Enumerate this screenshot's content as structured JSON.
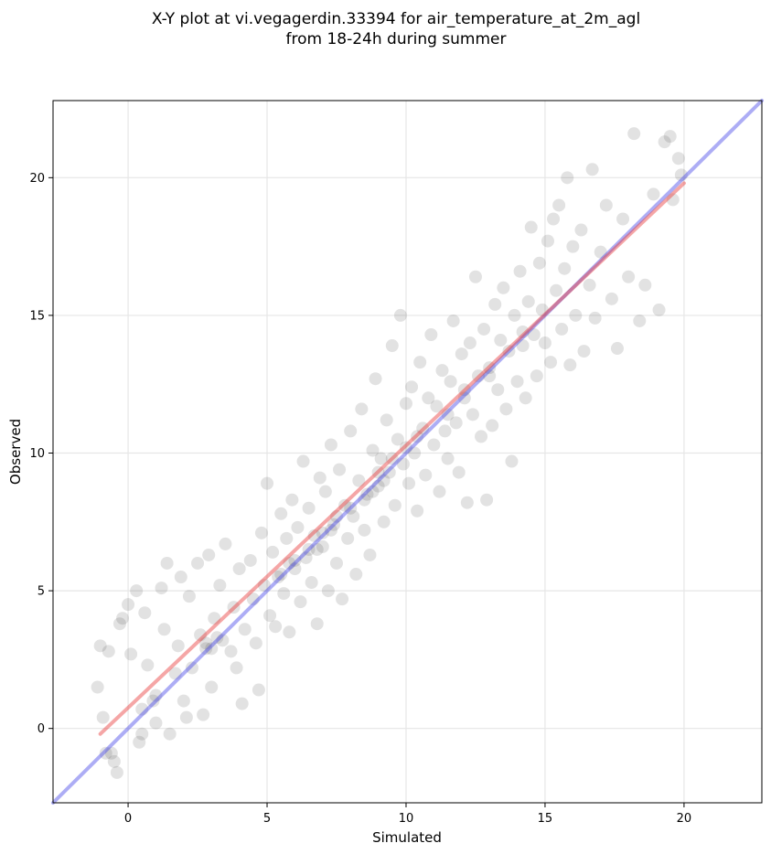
{
  "chart_data": {
    "type": "scatter",
    "title": "X-Y plot at vi.vegagerdin.33394 for air_temperature_at_2m_agl",
    "subtitle": "from 18-24h during summer",
    "xlabel": "Simulated",
    "ylabel": "Observed",
    "xlim": [
      -2.7,
      22.8
    ],
    "ylim": [
      -2.7,
      22.8
    ],
    "x_ticks": [
      0,
      5,
      10,
      15,
      20
    ],
    "y_ticks": [
      0,
      5,
      10,
      15,
      20
    ],
    "grid": true,
    "point_color": "#333333",
    "point_alpha": 0.14,
    "identity_line": {
      "color": "#4a4ae8",
      "alpha": 0.45,
      "x": [
        -2.7,
        22.8
      ],
      "y": [
        -2.7,
        22.8
      ]
    },
    "fit_line": {
      "color": "#e83a3a",
      "alpha": 0.45,
      "x": [
        -1,
        20
      ],
      "y": [
        -0.2,
        19.8
      ]
    },
    "points": [
      [
        -1.1,
        1.5
      ],
      [
        -1.0,
        3.0
      ],
      [
        -0.9,
        0.4
      ],
      [
        -0.7,
        2.8
      ],
      [
        -0.6,
        -0.9
      ],
      [
        -0.5,
        -1.2
      ],
      [
        -0.4,
        -1.6
      ],
      [
        -0.3,
        3.8
      ],
      [
        -0.2,
        4.0
      ],
      [
        0.0,
        4.5
      ],
      [
        0.1,
        2.7
      ],
      [
        0.3,
        5.0
      ],
      [
        0.4,
        -0.5
      ],
      [
        0.5,
        -0.2
      ],
      [
        0.6,
        4.2
      ],
      [
        0.7,
        2.3
      ],
      [
        0.9,
        1.0
      ],
      [
        1.0,
        0.2
      ],
      [
        1.2,
        5.1
      ],
      [
        1.3,
        3.6
      ],
      [
        1.4,
        6.0
      ],
      [
        1.5,
        -0.2
      ],
      [
        1.7,
        2.0
      ],
      [
        1.8,
        3.0
      ],
      [
        1.9,
        5.5
      ],
      [
        2.0,
        1.0
      ],
      [
        2.1,
        0.4
      ],
      [
        2.2,
        4.8
      ],
      [
        2.3,
        2.2
      ],
      [
        2.5,
        6.0
      ],
      [
        2.6,
        3.4
      ],
      [
        2.7,
        0.5
      ],
      [
        2.8,
        2.9
      ],
      [
        2.9,
        6.3
      ],
      [
        3.0,
        1.5
      ],
      [
        3.1,
        4.0
      ],
      [
        3.3,
        5.2
      ],
      [
        3.4,
        3.2
      ],
      [
        3.5,
        6.7
      ],
      [
        3.7,
        2.8
      ],
      [
        3.8,
        4.4
      ],
      [
        3.9,
        2.2
      ],
      [
        4.0,
        5.8
      ],
      [
        4.1,
        0.9
      ],
      [
        4.2,
        3.6
      ],
      [
        4.4,
        6.1
      ],
      [
        4.5,
        4.7
      ],
      [
        4.6,
        3.1
      ],
      [
        4.7,
        1.4
      ],
      [
        4.8,
        7.1
      ],
      [
        4.9,
        5.2
      ],
      [
        5.0,
        8.9
      ],
      [
        5.1,
        4.1
      ],
      [
        5.2,
        6.4
      ],
      [
        5.3,
        3.7
      ],
      [
        5.4,
        5.5
      ],
      [
        5.5,
        7.8
      ],
      [
        5.6,
        4.9
      ],
      [
        5.7,
        6.9
      ],
      [
        5.8,
        3.5
      ],
      [
        5.9,
        8.3
      ],
      [
        6.0,
        5.8
      ],
      [
        6.1,
        7.3
      ],
      [
        6.2,
        4.6
      ],
      [
        6.3,
        9.7
      ],
      [
        6.4,
        6.2
      ],
      [
        6.5,
        8.0
      ],
      [
        6.6,
        5.3
      ],
      [
        6.7,
        7.0
      ],
      [
        6.8,
        3.8
      ],
      [
        6.9,
        9.1
      ],
      [
        7.0,
        6.6
      ],
      [
        7.1,
        8.6
      ],
      [
        7.2,
        5.0
      ],
      [
        7.3,
        10.3
      ],
      [
        7.4,
        7.4
      ],
      [
        7.5,
        6.0
      ],
      [
        7.6,
        9.4
      ],
      [
        7.7,
        4.7
      ],
      [
        7.8,
        8.1
      ],
      [
        7.9,
        6.9
      ],
      [
        8.0,
        10.8
      ],
      [
        8.1,
        7.7
      ],
      [
        8.2,
        5.6
      ],
      [
        8.3,
        9.0
      ],
      [
        8.4,
        11.6
      ],
      [
        8.5,
        7.2
      ],
      [
        8.6,
        8.5
      ],
      [
        8.7,
        6.3
      ],
      [
        8.8,
        10.1
      ],
      [
        8.9,
        12.7
      ],
      [
        9.0,
        8.8
      ],
      [
        9.1,
        9.8
      ],
      [
        9.2,
        7.5
      ],
      [
        9.3,
        11.2
      ],
      [
        9.4,
        9.3
      ],
      [
        9.5,
        13.9
      ],
      [
        9.6,
        8.1
      ],
      [
        9.7,
        10.5
      ],
      [
        9.8,
        15.0
      ],
      [
        9.9,
        9.6
      ],
      [
        10.0,
        11.8
      ],
      [
        10.1,
        8.9
      ],
      [
        10.2,
        12.4
      ],
      [
        10.3,
        10.0
      ],
      [
        10.4,
        7.9
      ],
      [
        10.5,
        13.3
      ],
      [
        10.6,
        10.9
      ],
      [
        10.7,
        9.2
      ],
      [
        10.8,
        12.0
      ],
      [
        10.9,
        14.3
      ],
      [
        11.0,
        10.3
      ],
      [
        11.1,
        11.7
      ],
      [
        11.2,
        8.6
      ],
      [
        11.3,
        13.0
      ],
      [
        11.4,
        10.8
      ],
      [
        11.5,
        9.8
      ],
      [
        11.6,
        12.6
      ],
      [
        11.7,
        14.8
      ],
      [
        11.8,
        11.1
      ],
      [
        11.9,
        9.3
      ],
      [
        12.0,
        13.6
      ],
      [
        12.1,
        12.0
      ],
      [
        12.2,
        8.2
      ],
      [
        12.3,
        14.0
      ],
      [
        12.4,
        11.4
      ],
      [
        12.5,
        16.4
      ],
      [
        12.6,
        12.8
      ],
      [
        12.7,
        10.6
      ],
      [
        12.8,
        14.5
      ],
      [
        12.9,
        8.3
      ],
      [
        13.0,
        13.1
      ],
      [
        13.1,
        11.0
      ],
      [
        13.2,
        15.4
      ],
      [
        13.3,
        12.3
      ],
      [
        13.4,
        14.1
      ],
      [
        13.5,
        16.0
      ],
      [
        13.6,
        11.6
      ],
      [
        13.7,
        13.7
      ],
      [
        13.8,
        9.7
      ],
      [
        13.9,
        15.0
      ],
      [
        14.0,
        12.6
      ],
      [
        14.1,
        16.6
      ],
      [
        14.2,
        13.9
      ],
      [
        14.3,
        12.0
      ],
      [
        14.4,
        15.5
      ],
      [
        14.5,
        18.2
      ],
      [
        14.6,
        14.3
      ],
      [
        14.7,
        12.8
      ],
      [
        14.8,
        16.9
      ],
      [
        14.9,
        15.2
      ],
      [
        15.0,
        14.0
      ],
      [
        15.1,
        17.7
      ],
      [
        15.2,
        13.3
      ],
      [
        15.3,
        18.5
      ],
      [
        15.4,
        15.9
      ],
      [
        15.5,
        19.0
      ],
      [
        15.6,
        14.5
      ],
      [
        15.7,
        16.7
      ],
      [
        15.8,
        20.0
      ],
      [
        15.9,
        13.2
      ],
      [
        16.0,
        17.5
      ],
      [
        16.1,
        15.0
      ],
      [
        16.3,
        18.1
      ],
      [
        16.4,
        13.7
      ],
      [
        16.6,
        16.1
      ],
      [
        16.7,
        20.3
      ],
      [
        16.8,
        14.9
      ],
      [
        17.0,
        17.3
      ],
      [
        17.2,
        19.0
      ],
      [
        17.4,
        15.6
      ],
      [
        17.6,
        13.8
      ],
      [
        17.8,
        18.5
      ],
      [
        18.0,
        16.4
      ],
      [
        18.2,
        21.6
      ],
      [
        18.4,
        14.8
      ],
      [
        18.6,
        16.1
      ],
      [
        18.9,
        19.4
      ],
      [
        19.1,
        15.2
      ],
      [
        19.3,
        21.3
      ],
      [
        19.5,
        21.5
      ],
      [
        19.6,
        19.2
      ],
      [
        19.8,
        20.7
      ],
      [
        19.9,
        20.1
      ],
      [
        6.5,
        6.5
      ],
      [
        7.0,
        7.1
      ],
      [
        7.5,
        7.7
      ],
      [
        8.0,
        8.0
      ],
      [
        8.5,
        8.3
      ],
      [
        9.0,
        9.3
      ],
      [
        9.5,
        9.8
      ],
      [
        10.0,
        10.2
      ],
      [
        5.5,
        5.6
      ],
      [
        6.0,
        6.1
      ],
      [
        8.8,
        8.6
      ],
      [
        9.2,
        9.0
      ],
      [
        10.4,
        10.6
      ],
      [
        7.3,
        7.2
      ],
      [
        6.8,
        6.5
      ],
      [
        5.8,
        6.0
      ],
      [
        3.0,
        2.9
      ],
      [
        2.8,
        3.1
      ],
      [
        3.2,
        3.3
      ],
      [
        1.0,
        1.2
      ],
      [
        0.5,
        0.7
      ],
      [
        -0.8,
        -0.9
      ],
      [
        11.5,
        11.4
      ],
      [
        12.1,
        12.3
      ],
      [
        13.0,
        12.8
      ],
      [
        14.2,
        14.4
      ]
    ]
  }
}
